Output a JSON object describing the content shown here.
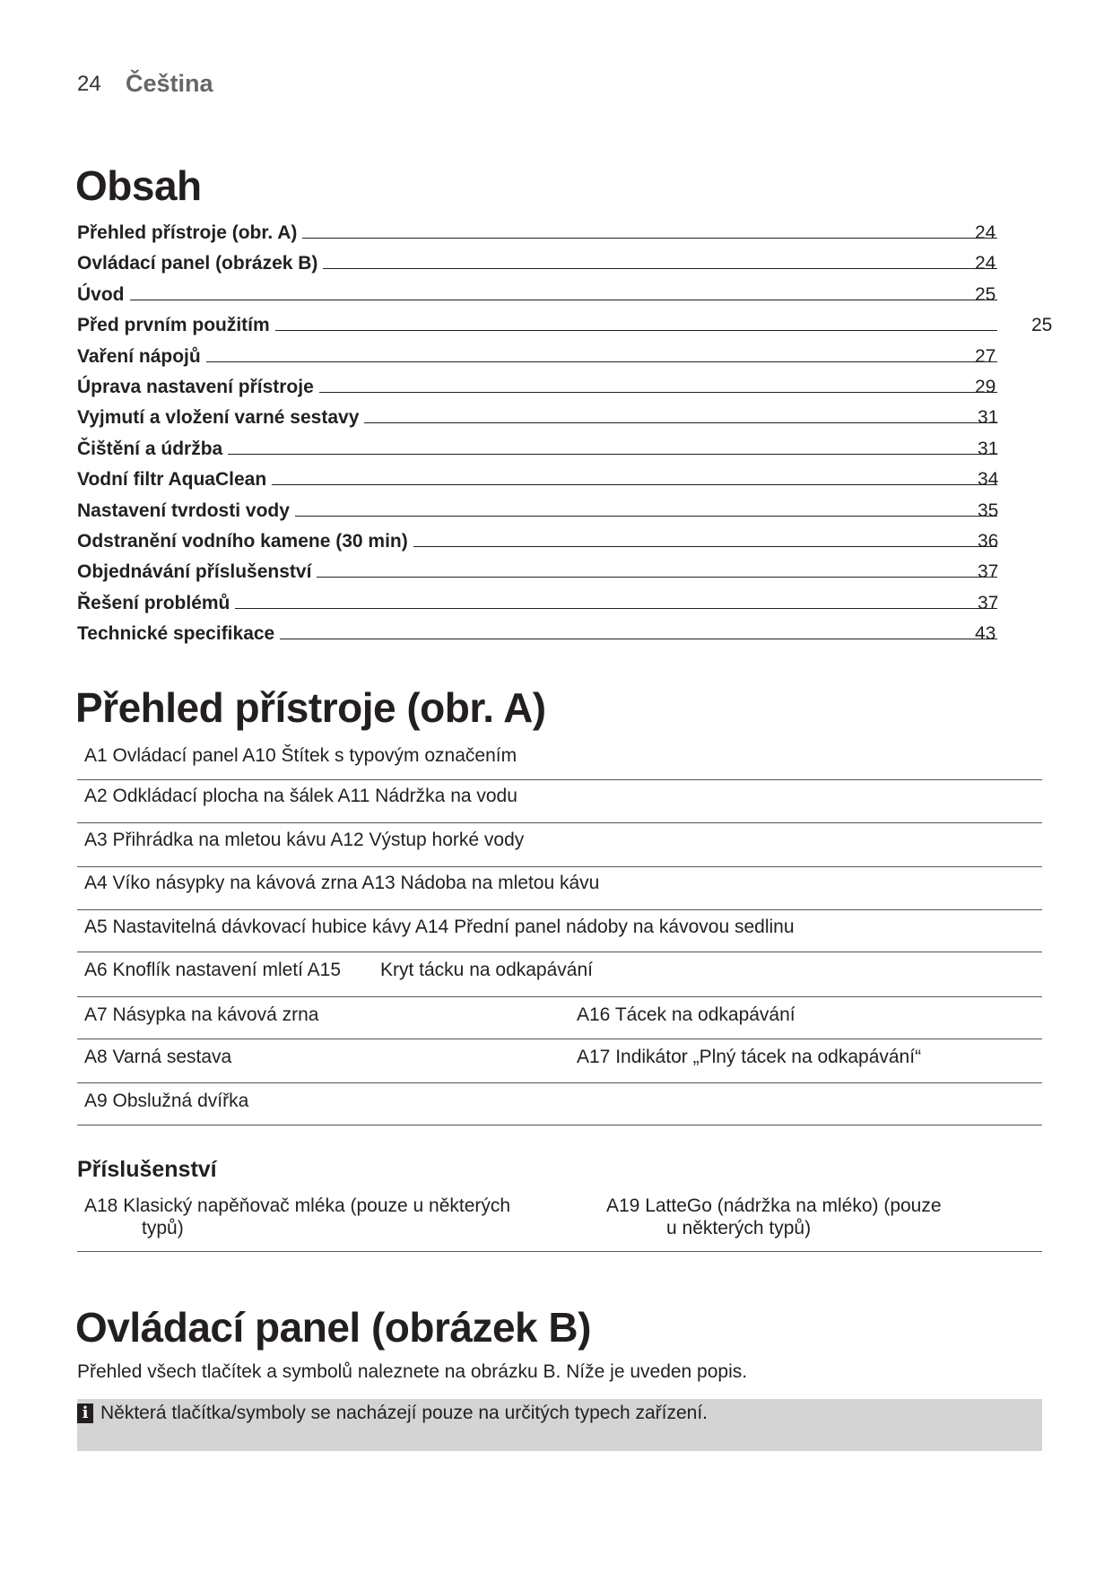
{
  "header": {
    "page_number": "24",
    "language": "Čeština"
  },
  "toc": {
    "title": "Obsah",
    "items": [
      {
        "label": "Přehled přístroje (obr. A)",
        "page": "24"
      },
      {
        "label": "Ovládací panel (obrázek B)",
        "page": "24"
      },
      {
        "label": "Úvod",
        "page": "25"
      },
      {
        "label": "Před prvním použitím",
        "page": "25"
      },
      {
        "label": "Vaření nápojů",
        "page": "27"
      },
      {
        "label": "Úprava nastavení přístroje",
        "page": "29"
      },
      {
        "label": "Vyjmutí a vložení varné sestavy",
        "page": "31"
      },
      {
        "label": "Čištění a údržba",
        "page": "31"
      },
      {
        "label": "Vodní filtr AquaClean",
        "page": "34"
      },
      {
        "label": "Nastavení tvrdosti vody",
        "page": "35"
      },
      {
        "label": "Odstranění vodního kamene (30 min)",
        "page": "36"
      },
      {
        "label": "Objednávání příslušenství",
        "page": "37"
      },
      {
        "label": "Řešení problémů",
        "page": "37"
      },
      {
        "label": "Technické specifikace",
        "page": "43"
      }
    ]
  },
  "overview": {
    "title": "Přehled přístroje (obr. A)",
    "rows": [
      {
        "left": "A1 Ovládací panel A10 Štítek s typovým označením",
        "right": ""
      },
      {
        "left": "A2 Odkládací plocha na šálek A11 Nádržka na vodu",
        "right": ""
      },
      {
        "left": "A3 Přihrádka na mletou kávu A12 Výstup horké vody",
        "right": ""
      },
      {
        "left": "A4 Víko násypky na kávová zrna A13 Nádoba na mletou kávu",
        "right": ""
      },
      {
        "left": "A5 Nastavitelná dávkovací hubice kávy A14 Přední panel nádoby na kávovou sedlinu",
        "right": ""
      },
      {
        "left": "A6 Knoflík nastavení mletí A15",
        "right": "Kryt tácku na odkapávání"
      },
      {
        "left": "A7 Násypka na kávová zrna",
        "right": "A16 Tácek na odkapávání"
      },
      {
        "left": "A8 Varná sestava",
        "right": "A17 Indikátor „Plný tácek na odkapávání“"
      },
      {
        "left": "A9 Obslužná dvířka",
        "right": ""
      }
    ],
    "accessories": {
      "title": "Příslušenství",
      "left": {
        "line1": "A18 Klasický napěňovač mléka (pouze u některých",
        "line2": "typů)"
      },
      "right": {
        "line1": "A19 LatteGo (nádržka na mléko) (pouze",
        "line2": "u některých typů)"
      }
    }
  },
  "control_panel": {
    "title": "Ovládací panel (obrázek B)",
    "text": "Přehled všech tlačítek a symbolů naleznete na obrázku B. Níže je uveden popis.",
    "note_icon": "info-icon",
    "note": "Některá tlačítka/symboly se nacházejí pouze na určitých typech zařízení."
  }
}
